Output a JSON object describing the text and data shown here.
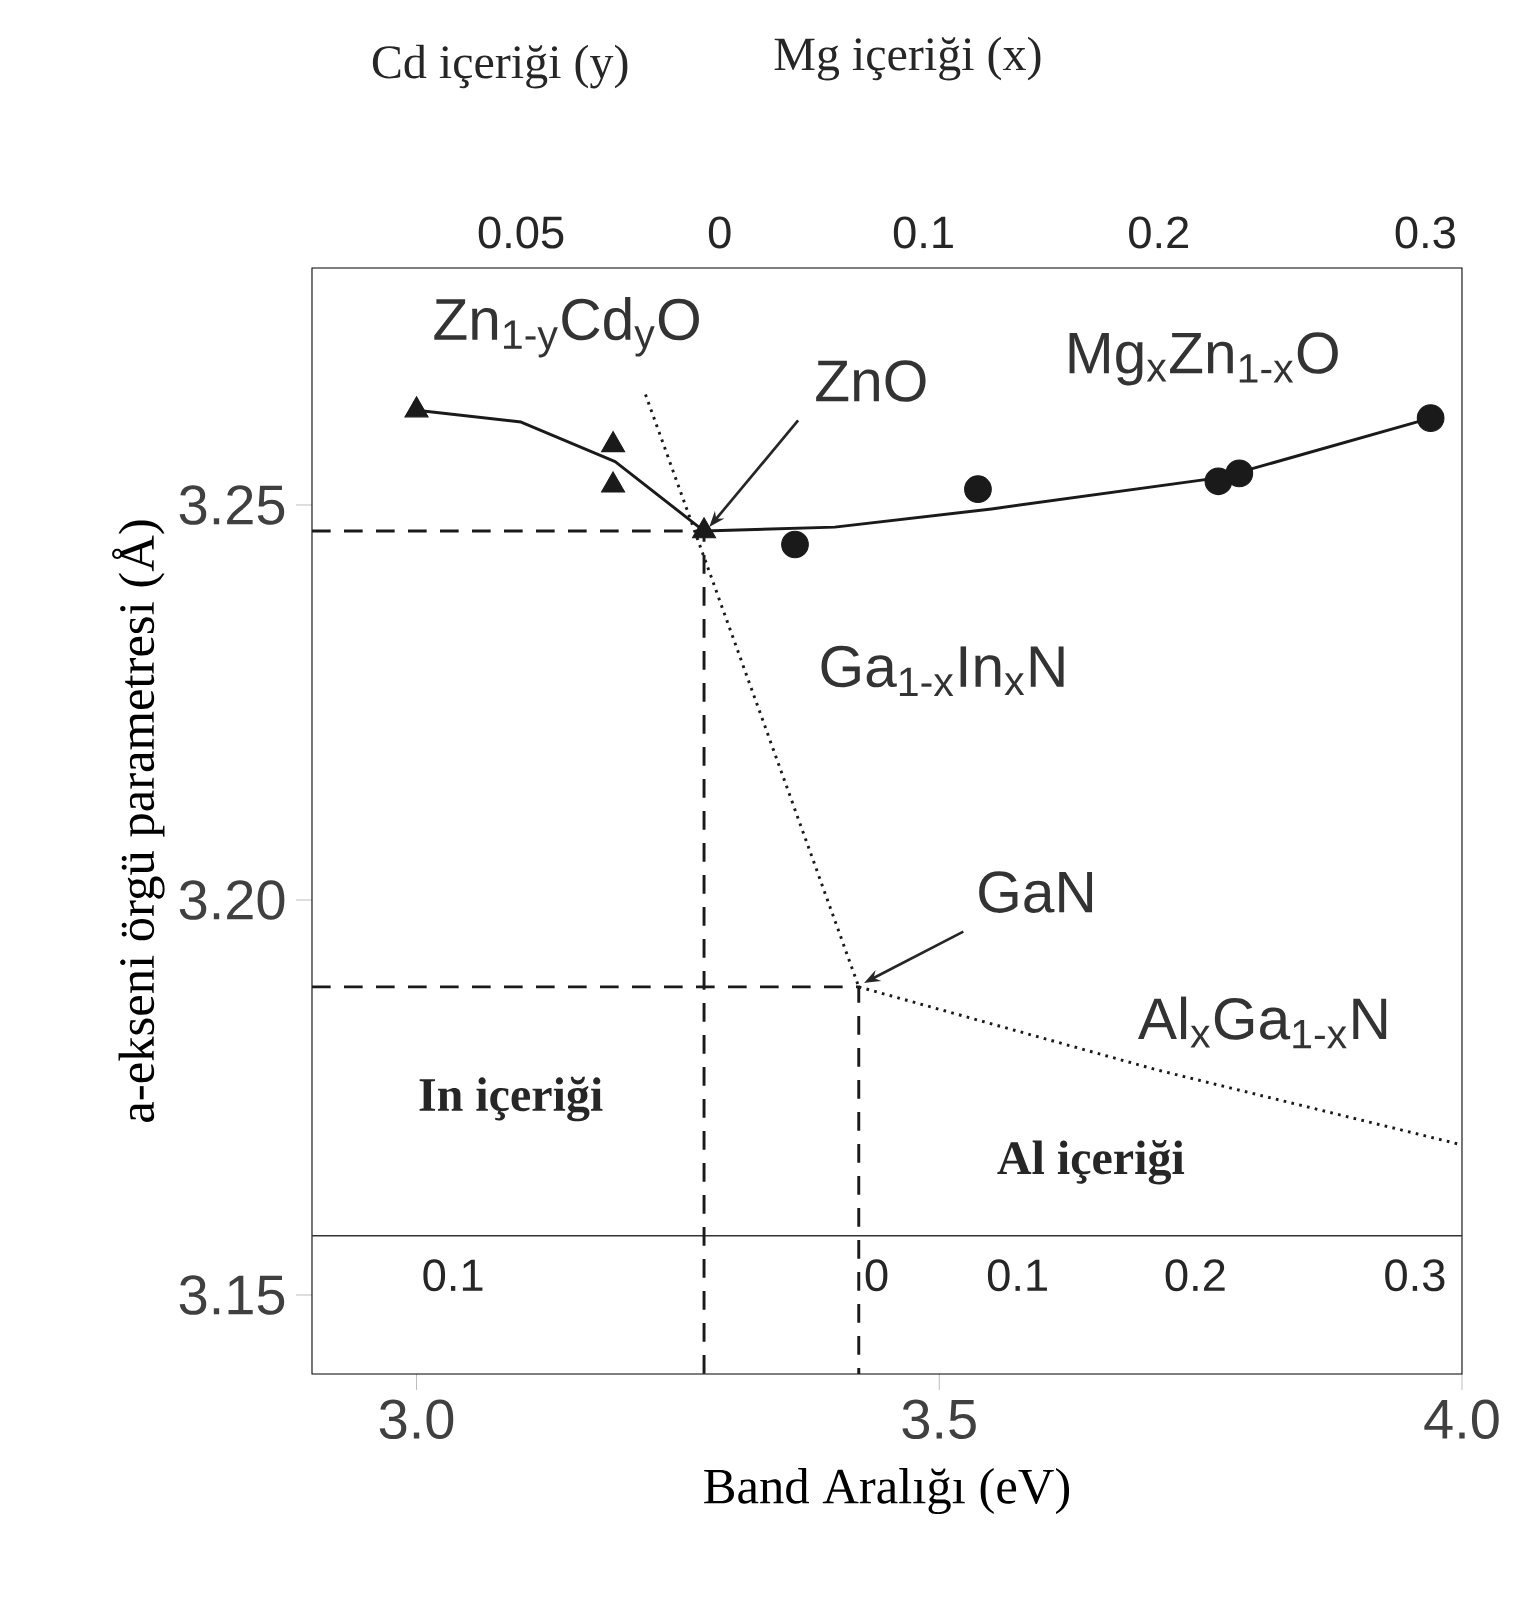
{
  "chart_data": {
    "type": "scatter",
    "xlabel": "Band Aralığı (eV)",
    "ylabel": "a-ekseni örgü parametresi  (Å)",
    "xlim": [
      2.9,
      4.0
    ],
    "ylim": [
      3.14,
      3.28
    ],
    "xticks": [
      {
        "value": 3.0,
        "label": "3.0"
      },
      {
        "value": 3.5,
        "label": "3.5"
      },
      {
        "value": 4.0,
        "label": "4.0"
      }
    ],
    "yticks": [
      3.15,
      {
        "value": 3.2,
        "label": "3.20"
      },
      3.25
    ],
    "series": [
      {
        "name": "Zn$_{1-y}$Cd$_{y}$O",
        "marker": "triangle",
        "color": "#1a1a1a",
        "x": [
          3.0,
          3.188,
          3.188,
          3.275
        ],
        "values": [
          3.262,
          3.2576,
          3.2525,
          3.2467
        ]
      },
      {
        "name": "Mg$_{x}$Zn$_{1-x}$O",
        "marker": "circle",
        "color": "#1a1a1a",
        "x": [
          3.362,
          3.537,
          3.767,
          3.787,
          3.97
        ],
        "values": [
          3.245,
          3.252,
          3.253,
          3.254,
          3.261
        ]
      },
      {
        "type": "line",
        "line_style": "solid",
        "color": "#1a1a1a",
        "x": [
          3.0,
          3.1,
          3.19,
          3.275
        ],
        "values": [
          3.262,
          3.2605,
          3.2555,
          3.2467
        ]
      },
      {
        "type": "line",
        "line_style": "solid",
        "color": "#1a1a1a",
        "x": [
          3.275,
          3.4,
          3.55,
          3.77,
          3.97
        ],
        "values": [
          3.2467,
          3.2472,
          3.2495,
          3.2535,
          3.261
        ]
      },
      {
        "name": "Ga$_{1-x}$In$_{x}$N",
        "type": "line",
        "line_style": "dotted",
        "color": "#1a1a1a",
        "x": [
          3.219,
          3.423
        ],
        "values": [
          3.264,
          3.189
        ]
      },
      {
        "name": "Al$_{x}$Ga$_{1-x}$N",
        "type": "line",
        "line_style": "dotted",
        "color": "#1a1a1a",
        "x": [
          3.423,
          3.708,
          4.0
        ],
        "values": [
          3.189,
          3.1785,
          3.169
        ]
      },
      {
        "type": "line",
        "line_style": "dashed",
        "color": "#1a1a1a",
        "x": [
          2.9,
          3.275,
          3.275
        ],
        "values": [
          3.2467,
          3.2467,
          3.14
        ]
      },
      {
        "type": "line",
        "line_style": "dashed",
        "color": "#1a1a1a",
        "x": [
          2.9,
          3.423,
          3.423
        ],
        "values": [
          3.189,
          3.189,
          3.14
        ]
      }
    ],
    "ref_lines": [
      {
        "axis": "y",
        "value": 3.1575,
        "color": "#333333",
        "line_style": "solid"
      }
    ],
    "annotations": [
      "Cd içeriği (y)",
      "Mg içeriği (x)",
      "In içeriği",
      "Al içeriği",
      {
        "text": "ZnO",
        "x": 3.275,
        "y": 3.2467
      },
      {
        "text": "GaN",
        "x": 3.423,
        "y": 3.189
      },
      "0.05",
      "0",
      "0.1",
      "0.2",
      "0.3",
      "0.1",
      "0",
      "0.1",
      "0.2",
      "0.3"
    ]
  }
}
